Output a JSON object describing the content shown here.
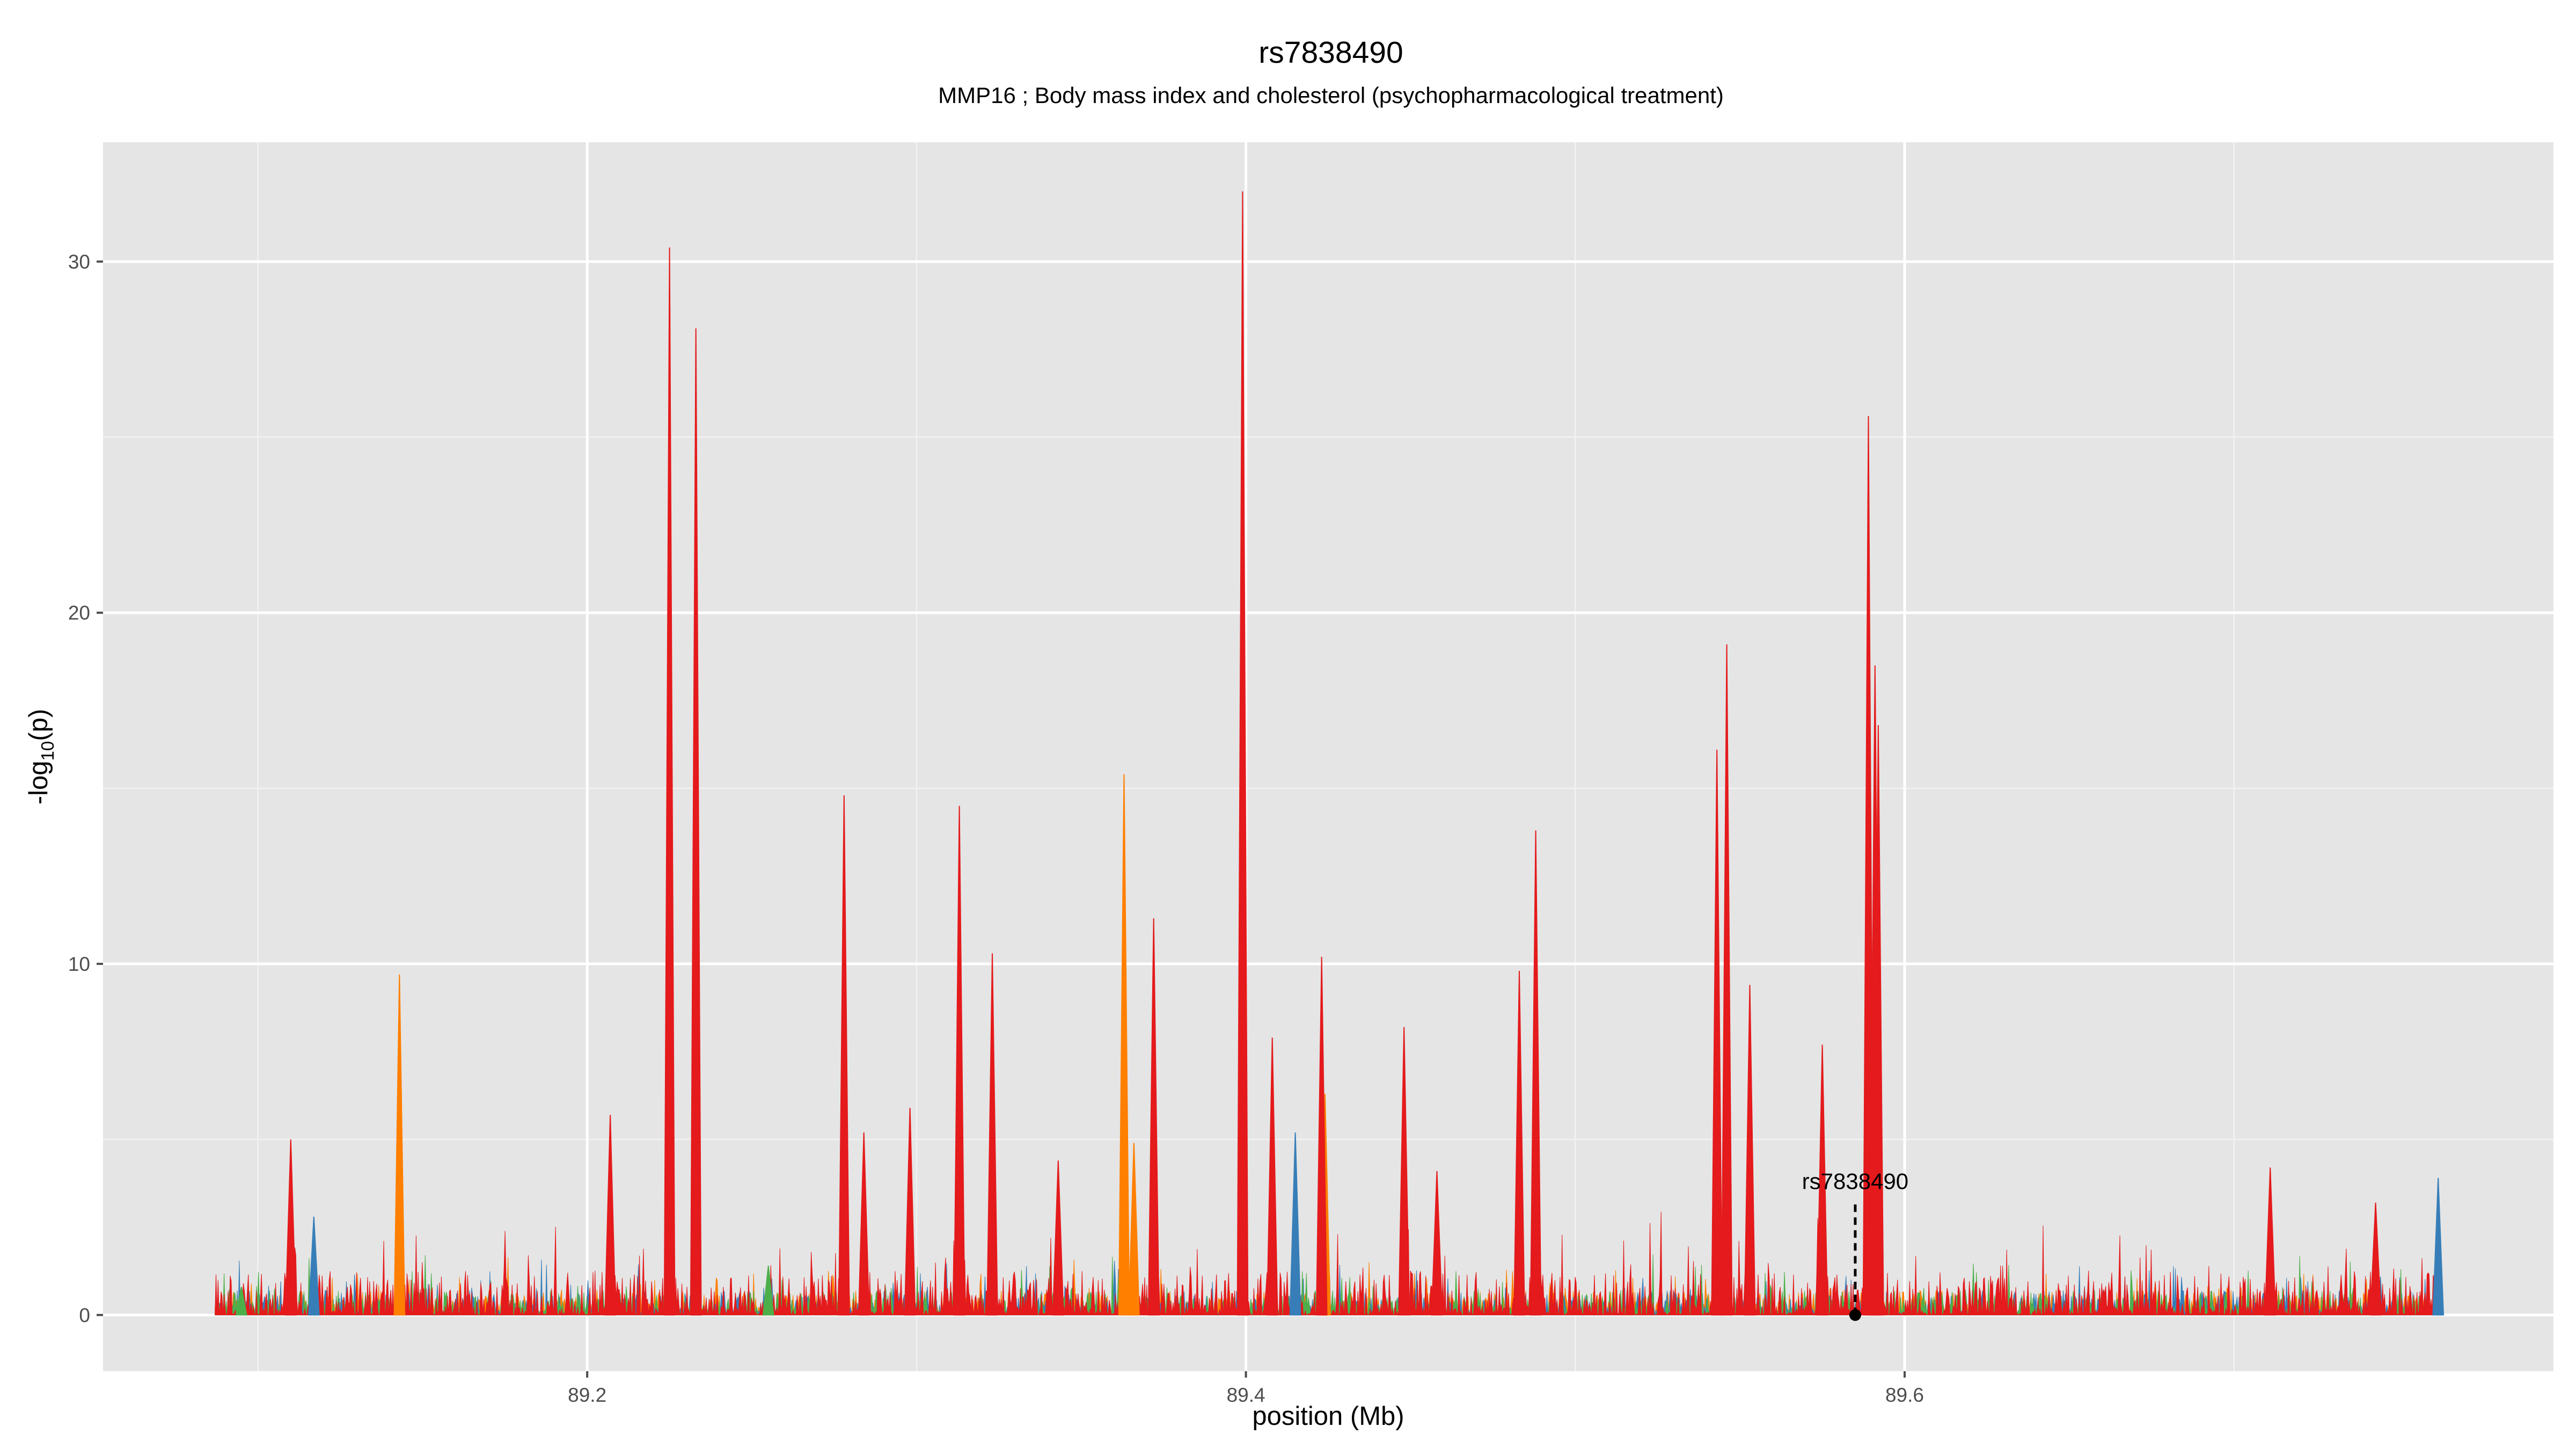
{
  "chart_data": {
    "type": "area",
    "title": "rs7838490",
    "subtitle": "MMP16 ; Body mass index and cholesterol (psychopharmacological treatment)",
    "xlabel": "position (Mb)",
    "ylabel_main": "-log",
    "ylabel_sub": "10",
    "ylabel_tail": "(p)",
    "xlim": [
      89.053,
      89.797
    ],
    "ylim": [
      -1.6,
      33.4
    ],
    "x_ticks": [
      89.2,
      89.4,
      89.6
    ],
    "x_tick_labels": [
      "89.2",
      "89.4",
      "89.6"
    ],
    "y_ticks": [
      0,
      10,
      20,
      30
    ],
    "y_tick_labels": [
      "0",
      "10",
      "20",
      "30"
    ],
    "grid": true,
    "region": [
      89.087,
      89.762
    ],
    "colors": {
      "panel": "#e5e5e5",
      "grid": "#ffffff",
      "main": "#e41a1c",
      "secondary": [
        "#ff7f00",
        "#377eb8",
        "#4daf4a"
      ]
    },
    "series": [
      {
        "color": "#e41a1c",
        "peaks": [
          [
            89.11,
            5.0
          ],
          [
            89.207,
            5.7
          ],
          [
            89.225,
            30.4
          ],
          [
            89.233,
            28.1
          ],
          [
            89.278,
            14.8
          ],
          [
            89.284,
            5.2
          ],
          [
            89.298,
            5.9
          ],
          [
            89.313,
            14.5
          ],
          [
            89.323,
            10.3
          ],
          [
            89.343,
            4.4
          ],
          [
            89.372,
            11.3
          ],
          [
            89.399,
            32.0
          ],
          [
            89.408,
            7.9
          ],
          [
            89.423,
            10.2
          ],
          [
            89.448,
            8.2
          ],
          [
            89.458,
            4.1
          ],
          [
            89.488,
            13.8
          ],
          [
            89.483,
            9.8
          ],
          [
            89.543,
            16.1
          ],
          [
            89.546,
            19.1
          ],
          [
            89.553,
            9.4
          ],
          [
            89.575,
            7.7
          ],
          [
            89.589,
            25.6
          ],
          [
            89.591,
            18.5
          ],
          [
            89.592,
            16.8
          ],
          [
            89.711,
            4.2
          ],
          [
            89.743,
            3.2
          ]
        ]
      },
      {
        "color": "#ff7f00",
        "peaks": [
          [
            89.143,
            9.7
          ],
          [
            89.363,
            15.4
          ],
          [
            89.366,
            4.9
          ],
          [
            89.424,
            6.3
          ]
        ]
      },
      {
        "color": "#377eb8",
        "peaks": [
          [
            89.117,
            2.8
          ],
          [
            89.233,
            21.5
          ],
          [
            89.415,
            5.2
          ],
          [
            89.762,
            3.9
          ]
        ]
      },
      {
        "color": "#4daf4a",
        "peaks": [
          [
            89.095,
            0.8
          ],
          [
            89.255,
            1.4
          ]
        ]
      }
    ],
    "lead_snp": {
      "label": "rs7838490",
      "x": 89.585,
      "y": 0
    }
  }
}
